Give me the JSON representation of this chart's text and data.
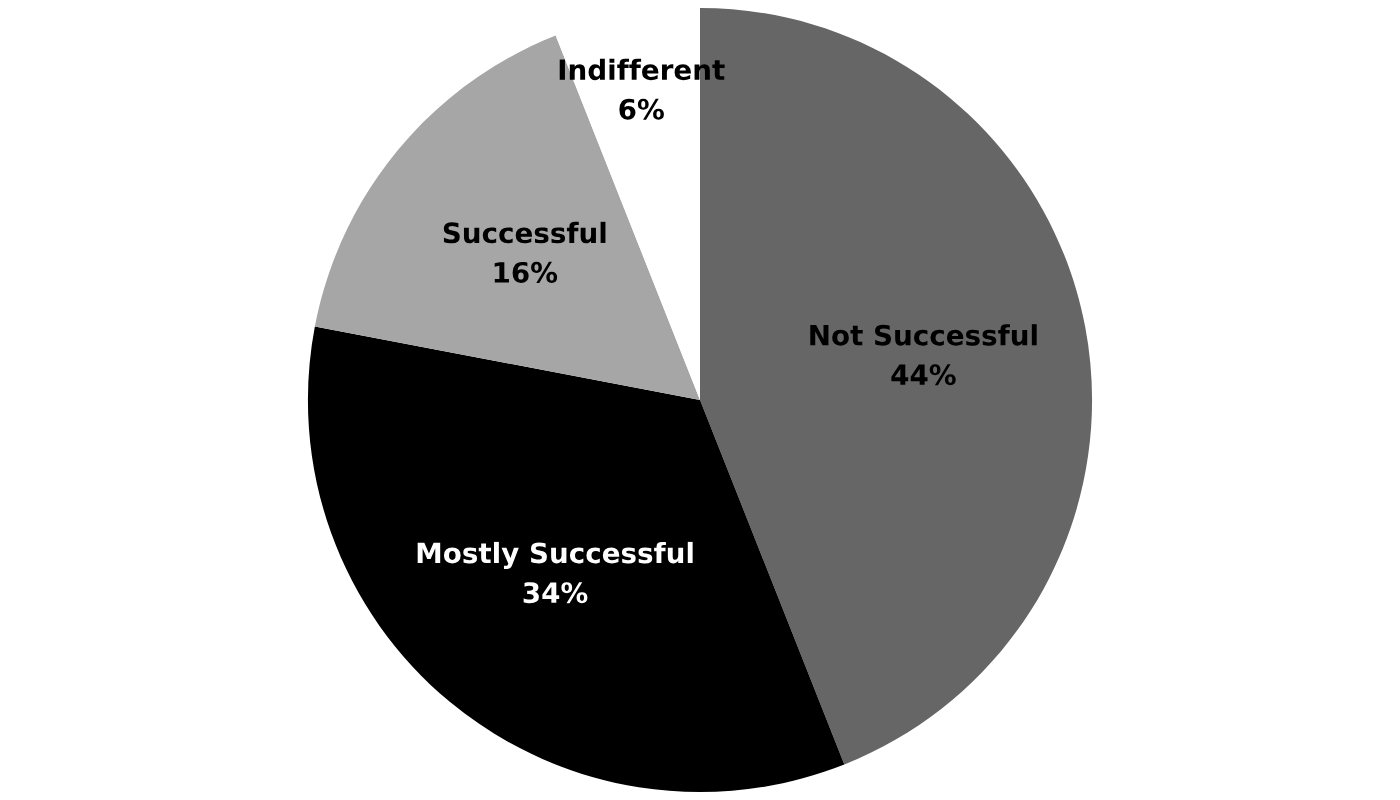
{
  "chart_data": {
    "type": "pie",
    "categories": [
      "Not Successful",
      "Mostly Successful",
      "Successful",
      "Indifferent"
    ],
    "values": [
      44,
      34,
      16,
      6
    ],
    "value_labels": [
      "44%",
      "34%",
      "16%",
      "6%"
    ],
    "colors": [
      "#666666",
      "#000000",
      "#a6a6a6",
      "#ffffff"
    ],
    "legend": false
  }
}
